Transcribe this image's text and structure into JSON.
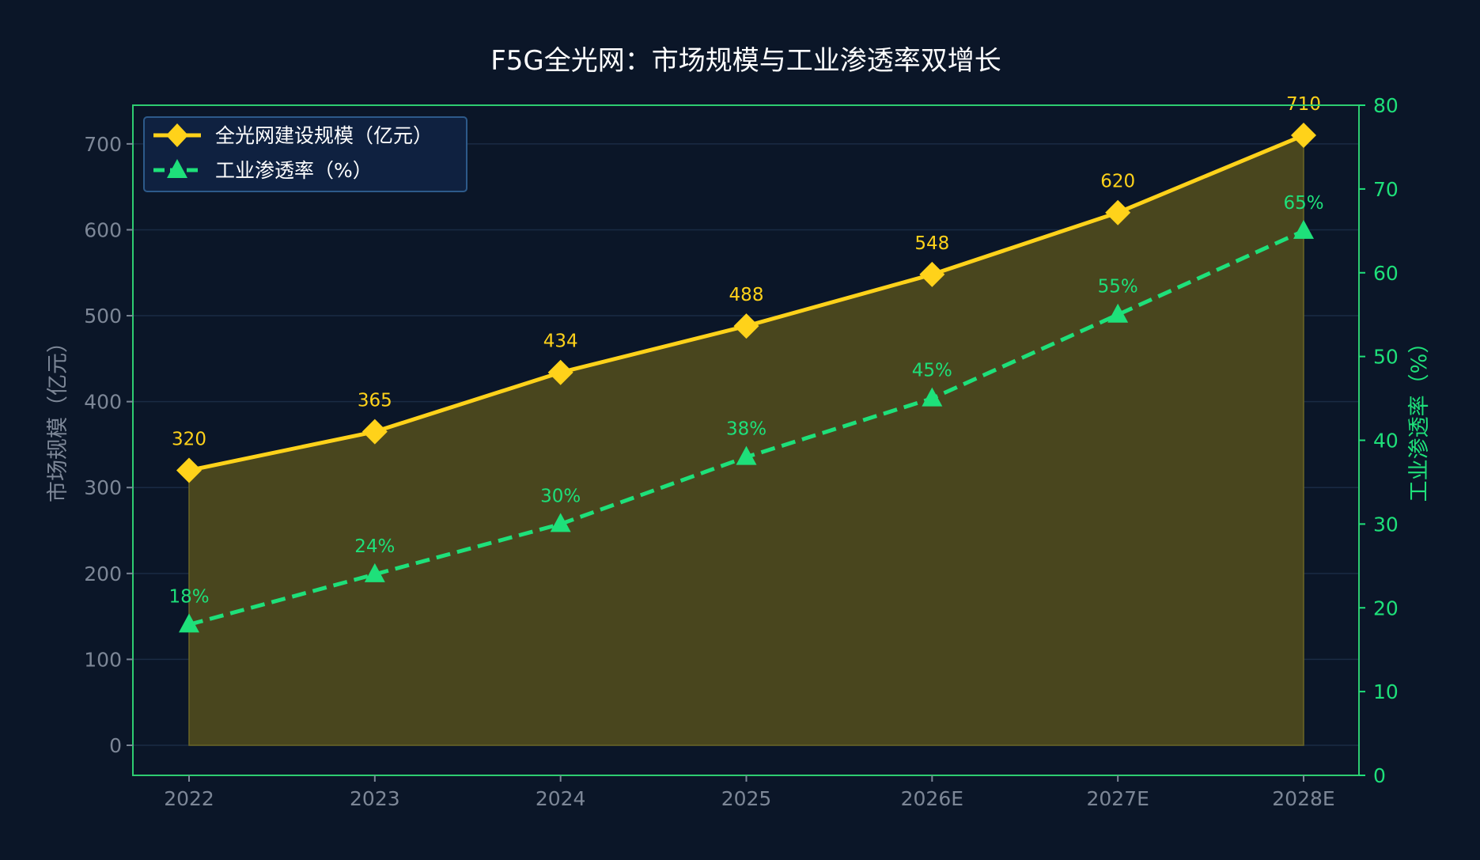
{
  "colors": {
    "background": "#0b1628",
    "plot_border": "#2ecc71",
    "gold": "#ffd21a",
    "green": "#1ee07a",
    "left_axis_text": "#7d8797",
    "title_text": "#ffffff",
    "area_fill": "#49461e",
    "legend_bg": "#0f2140",
    "legend_border": "#2d5a8a"
  },
  "chart_data": {
    "type": "line",
    "title": "F5G全光网：市场规模与工业渗透率双增长",
    "categories": [
      "2022",
      "2023",
      "2024",
      "2025",
      "2026E",
      "2027E",
      "2028E"
    ],
    "ylabel_left": "市场规模（亿元）",
    "ylabel_right": "工业渗透率（%）",
    "ylim_left": [
      -35,
      745
    ],
    "yticks_left": [
      0,
      100,
      200,
      300,
      400,
      500,
      600,
      700
    ],
    "ylim_right": [
      0,
      80
    ],
    "yticks_right": [
      0,
      10,
      20,
      30,
      40,
      50,
      60,
      70,
      80
    ],
    "grid": "horizontal",
    "legend_position": "top-left",
    "series": [
      {
        "name": "全光网建设规模（亿元）",
        "axis": "left",
        "marker": "diamond",
        "style": "solid",
        "filled_area": true,
        "values": [
          320,
          365,
          434,
          488,
          548,
          620,
          710
        ],
        "labels": [
          "320",
          "365",
          "434",
          "488",
          "548",
          "620",
          "710"
        ]
      },
      {
        "name": "工业渗透率（%）",
        "axis": "right",
        "marker": "triangle",
        "style": "dashed",
        "filled_area": false,
        "values": [
          18,
          24,
          30,
          38,
          45,
          55,
          65
        ],
        "labels": [
          "18%",
          "24%",
          "30%",
          "38%",
          "45%",
          "55%",
          "65%"
        ]
      }
    ]
  }
}
